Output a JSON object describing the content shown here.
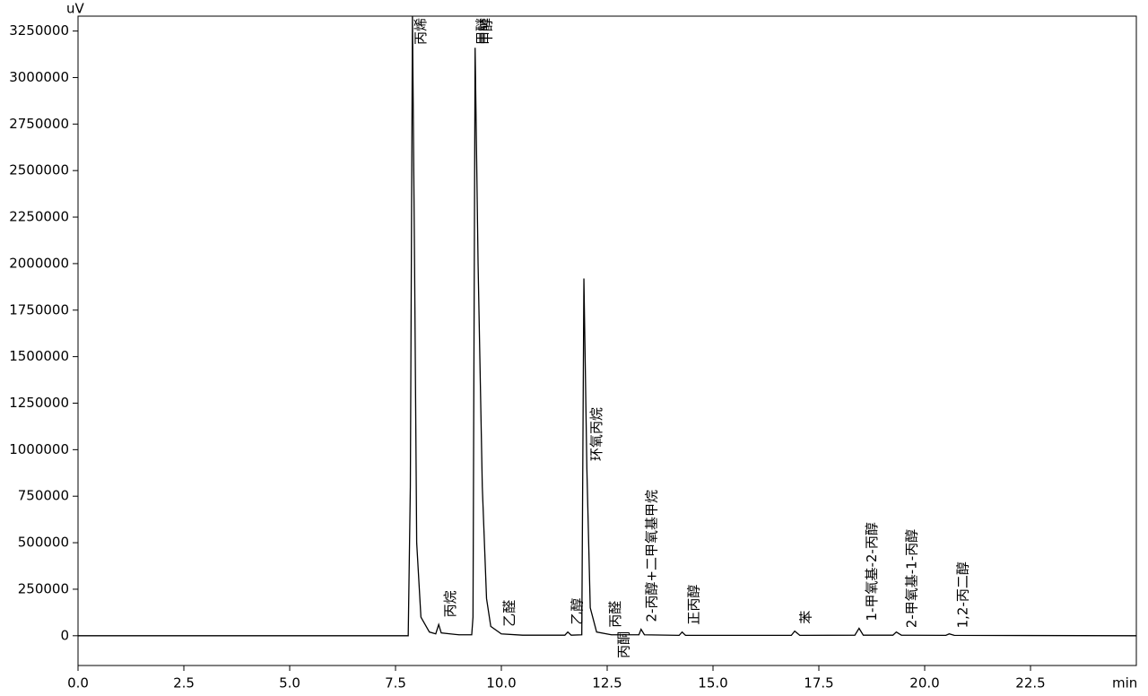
{
  "chart_data": {
    "type": "line",
    "y_unit": "uV",
    "x_unit": "min",
    "color": "#000000",
    "x": [
      0,
      7.8,
      7.85,
      7.9,
      7.95,
      8.0,
      8.1,
      8.3,
      8.45,
      8.52,
      8.58,
      9.0,
      9.3,
      9.33,
      9.38,
      9.45,
      9.55,
      9.65,
      9.75,
      10.0,
      10.5,
      11.5,
      11.57,
      11.65,
      11.9,
      11.95,
      12.02,
      12.1,
      12.25,
      12.6,
      13.25,
      13.3,
      13.38,
      14.2,
      14.27,
      14.35,
      16.85,
      16.93,
      17.05,
      18.35,
      18.45,
      18.55,
      19.25,
      19.33,
      19.45,
      20.5,
      20.58,
      20.7,
      25
    ],
    "values": [
      0,
      0,
      800000,
      3330000,
      2000000,
      500000,
      100000,
      20000,
      10000,
      60000,
      15000,
      5000,
      5000,
      100000,
      3160000,
      2000000,
      800000,
      200000,
      50000,
      10000,
      3000,
      3000,
      20000,
      3000,
      5000,
      1920000,
      900000,
      150000,
      20000,
      5000,
      5000,
      35000,
      5000,
      2000,
      20000,
      2000,
      2000,
      25000,
      2000,
      3000,
      40000,
      3000,
      3000,
      20000,
      3000,
      2000,
      10000,
      2000,
      0
    ],
    "annotations": [
      {
        "text": "丙烯",
        "x": 8.0
      },
      {
        "text": "丙烷",
        "x": 8.7
      },
      {
        "text": "甲醚",
        "x": 9.45
      },
      {
        "text": "甲醇",
        "x": 9.55
      },
      {
        "text": "乙醛",
        "x": 10.1
      },
      {
        "text": "乙醇",
        "x": 11.7
      },
      {
        "text": "环氧丙烷",
        "x": 12.15
      },
      {
        "text": "丙醛",
        "x": 12.6
      },
      {
        "text": "丙酮",
        "x": 12.8
      },
      {
        "text": "2-丙醇+二甲氧基甲烷",
        "x": 13.45
      },
      {
        "text": "正丙醇",
        "x": 14.45
      },
      {
        "text": "苯",
        "x": 17.1
      },
      {
        "text": "1-甲氧基-2-丙醇",
        "x": 18.65
      },
      {
        "text": "2-甲氧基-1-丙醇",
        "x": 19.6
      },
      {
        "text": "1,2-丙二醇",
        "x": 20.8
      }
    ],
    "xlim": [
      0,
      25
    ],
    "ylim": [
      -160000,
      3330000
    ],
    "xticks": [
      {
        "value": 0,
        "label": "0.0"
      },
      {
        "value": 2.5,
        "label": "2.5"
      },
      {
        "value": 5,
        "label": "5.0"
      },
      {
        "value": 7.5,
        "label": "7.5"
      },
      {
        "value": 10,
        "label": "10.0"
      },
      {
        "value": 12.5,
        "label": "12.5"
      },
      {
        "value": 15,
        "label": "15.0"
      },
      {
        "value": 17.5,
        "label": "17.5"
      },
      {
        "value": 20,
        "label": "20.0"
      },
      {
        "value": 22.5,
        "label": "22.5"
      }
    ],
    "yticks": [
      0,
      250000,
      500000,
      750000,
      1000000,
      1250000,
      1500000,
      1750000,
      2000000,
      2250000,
      2500000,
      2750000,
      3000000,
      3250000
    ]
  }
}
